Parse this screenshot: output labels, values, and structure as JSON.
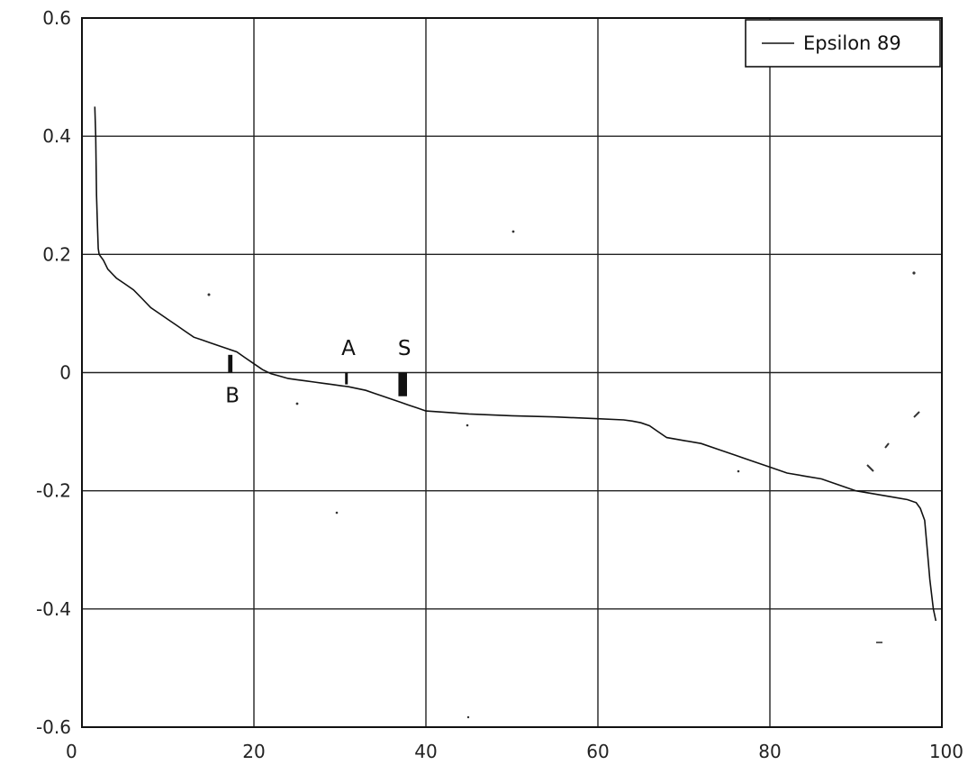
{
  "chart_data": {
    "type": "line",
    "title": "",
    "xlabel": "",
    "ylabel": "",
    "xlim": [
      0,
      100
    ],
    "ylim": [
      -0.6,
      0.6
    ],
    "x_ticks": [
      0,
      20,
      40,
      60,
      80,
      100
    ],
    "x_tick_labels": [
      "0",
      "20",
      "40",
      "60",
      "80",
      "100"
    ],
    "y_ticks": [
      0.6,
      0.4,
      0.2,
      0,
      -0.2,
      -0.4,
      -0.6
    ],
    "y_tick_labels": [
      "0.6",
      "0.4",
      "0.2",
      "0",
      "-0.2",
      "-0.4",
      "-0.6"
    ],
    "grid": true,
    "legend": {
      "position": "top-right",
      "entries": [
        "Epsilon 89"
      ]
    },
    "series": [
      {
        "name": "Epsilon 89",
        "x": [
          1.5,
          1.6,
          1.7,
          1.8,
          1.9,
          2,
          2.5,
          3,
          4,
          5,
          6,
          7,
          8,
          9,
          10,
          11,
          12,
          13,
          14,
          15,
          16,
          17,
          18,
          19,
          20,
          21,
          22,
          23,
          24,
          25,
          26,
          27,
          28,
          29,
          30,
          31,
          32,
          33,
          34,
          35,
          36,
          37,
          38,
          39,
          40,
          45,
          50,
          55,
          60,
          63,
          64,
          65,
          66,
          67,
          68,
          70,
          72,
          74,
          76,
          78,
          80,
          82,
          84,
          86,
          88,
          90,
          92,
          94,
          96,
          97,
          97.5,
          98,
          98.3,
          98.6,
          99,
          99.3
        ],
        "y": [
          0.45,
          0.4,
          0.3,
          0.25,
          0.21,
          0.2,
          0.19,
          0.175,
          0.16,
          0.15,
          0.14,
          0.125,
          0.11,
          0.1,
          0.09,
          0.08,
          0.07,
          0.06,
          0.055,
          0.05,
          0.045,
          0.04,
          0.035,
          0.025,
          0.015,
          0.005,
          -0.002,
          -0.006,
          -0.01,
          -0.012,
          -0.014,
          -0.016,
          -0.018,
          -0.02,
          -0.022,
          -0.024,
          -0.027,
          -0.03,
          -0.035,
          -0.04,
          -0.045,
          -0.05,
          -0.055,
          -0.06,
          -0.065,
          -0.07,
          -0.073,
          -0.075,
          -0.078,
          -0.08,
          -0.082,
          -0.085,
          -0.09,
          -0.1,
          -0.11,
          -0.115,
          -0.12,
          -0.13,
          -0.14,
          -0.15,
          -0.16,
          -0.17,
          -0.175,
          -0.18,
          -0.19,
          -0.2,
          -0.205,
          -0.21,
          -0.215,
          -0.22,
          -0.23,
          -0.25,
          -0.3,
          -0.35,
          -0.4,
          -0.42
        ]
      }
    ],
    "shaded_bands": [
      {
        "label": "B",
        "x_start": 17,
        "x_end": 17.5,
        "y_top": 0.03,
        "y_bottom": 0
      },
      {
        "label": "A",
        "x_start": 30.6,
        "x_end": 30.9,
        "y_top": 0,
        "y_bottom": -0.02
      },
      {
        "label": "S",
        "x_start": 36.8,
        "x_end": 37.8,
        "y_top": 0,
        "y_bottom": -0.04
      }
    ],
    "annotations": [
      {
        "text": "A",
        "x": 31,
        "y": 0.03
      },
      {
        "text": "S",
        "x": 37.5,
        "y": 0.03
      },
      {
        "text": "B",
        "x": 17.5,
        "y": -0.05
      }
    ]
  }
}
